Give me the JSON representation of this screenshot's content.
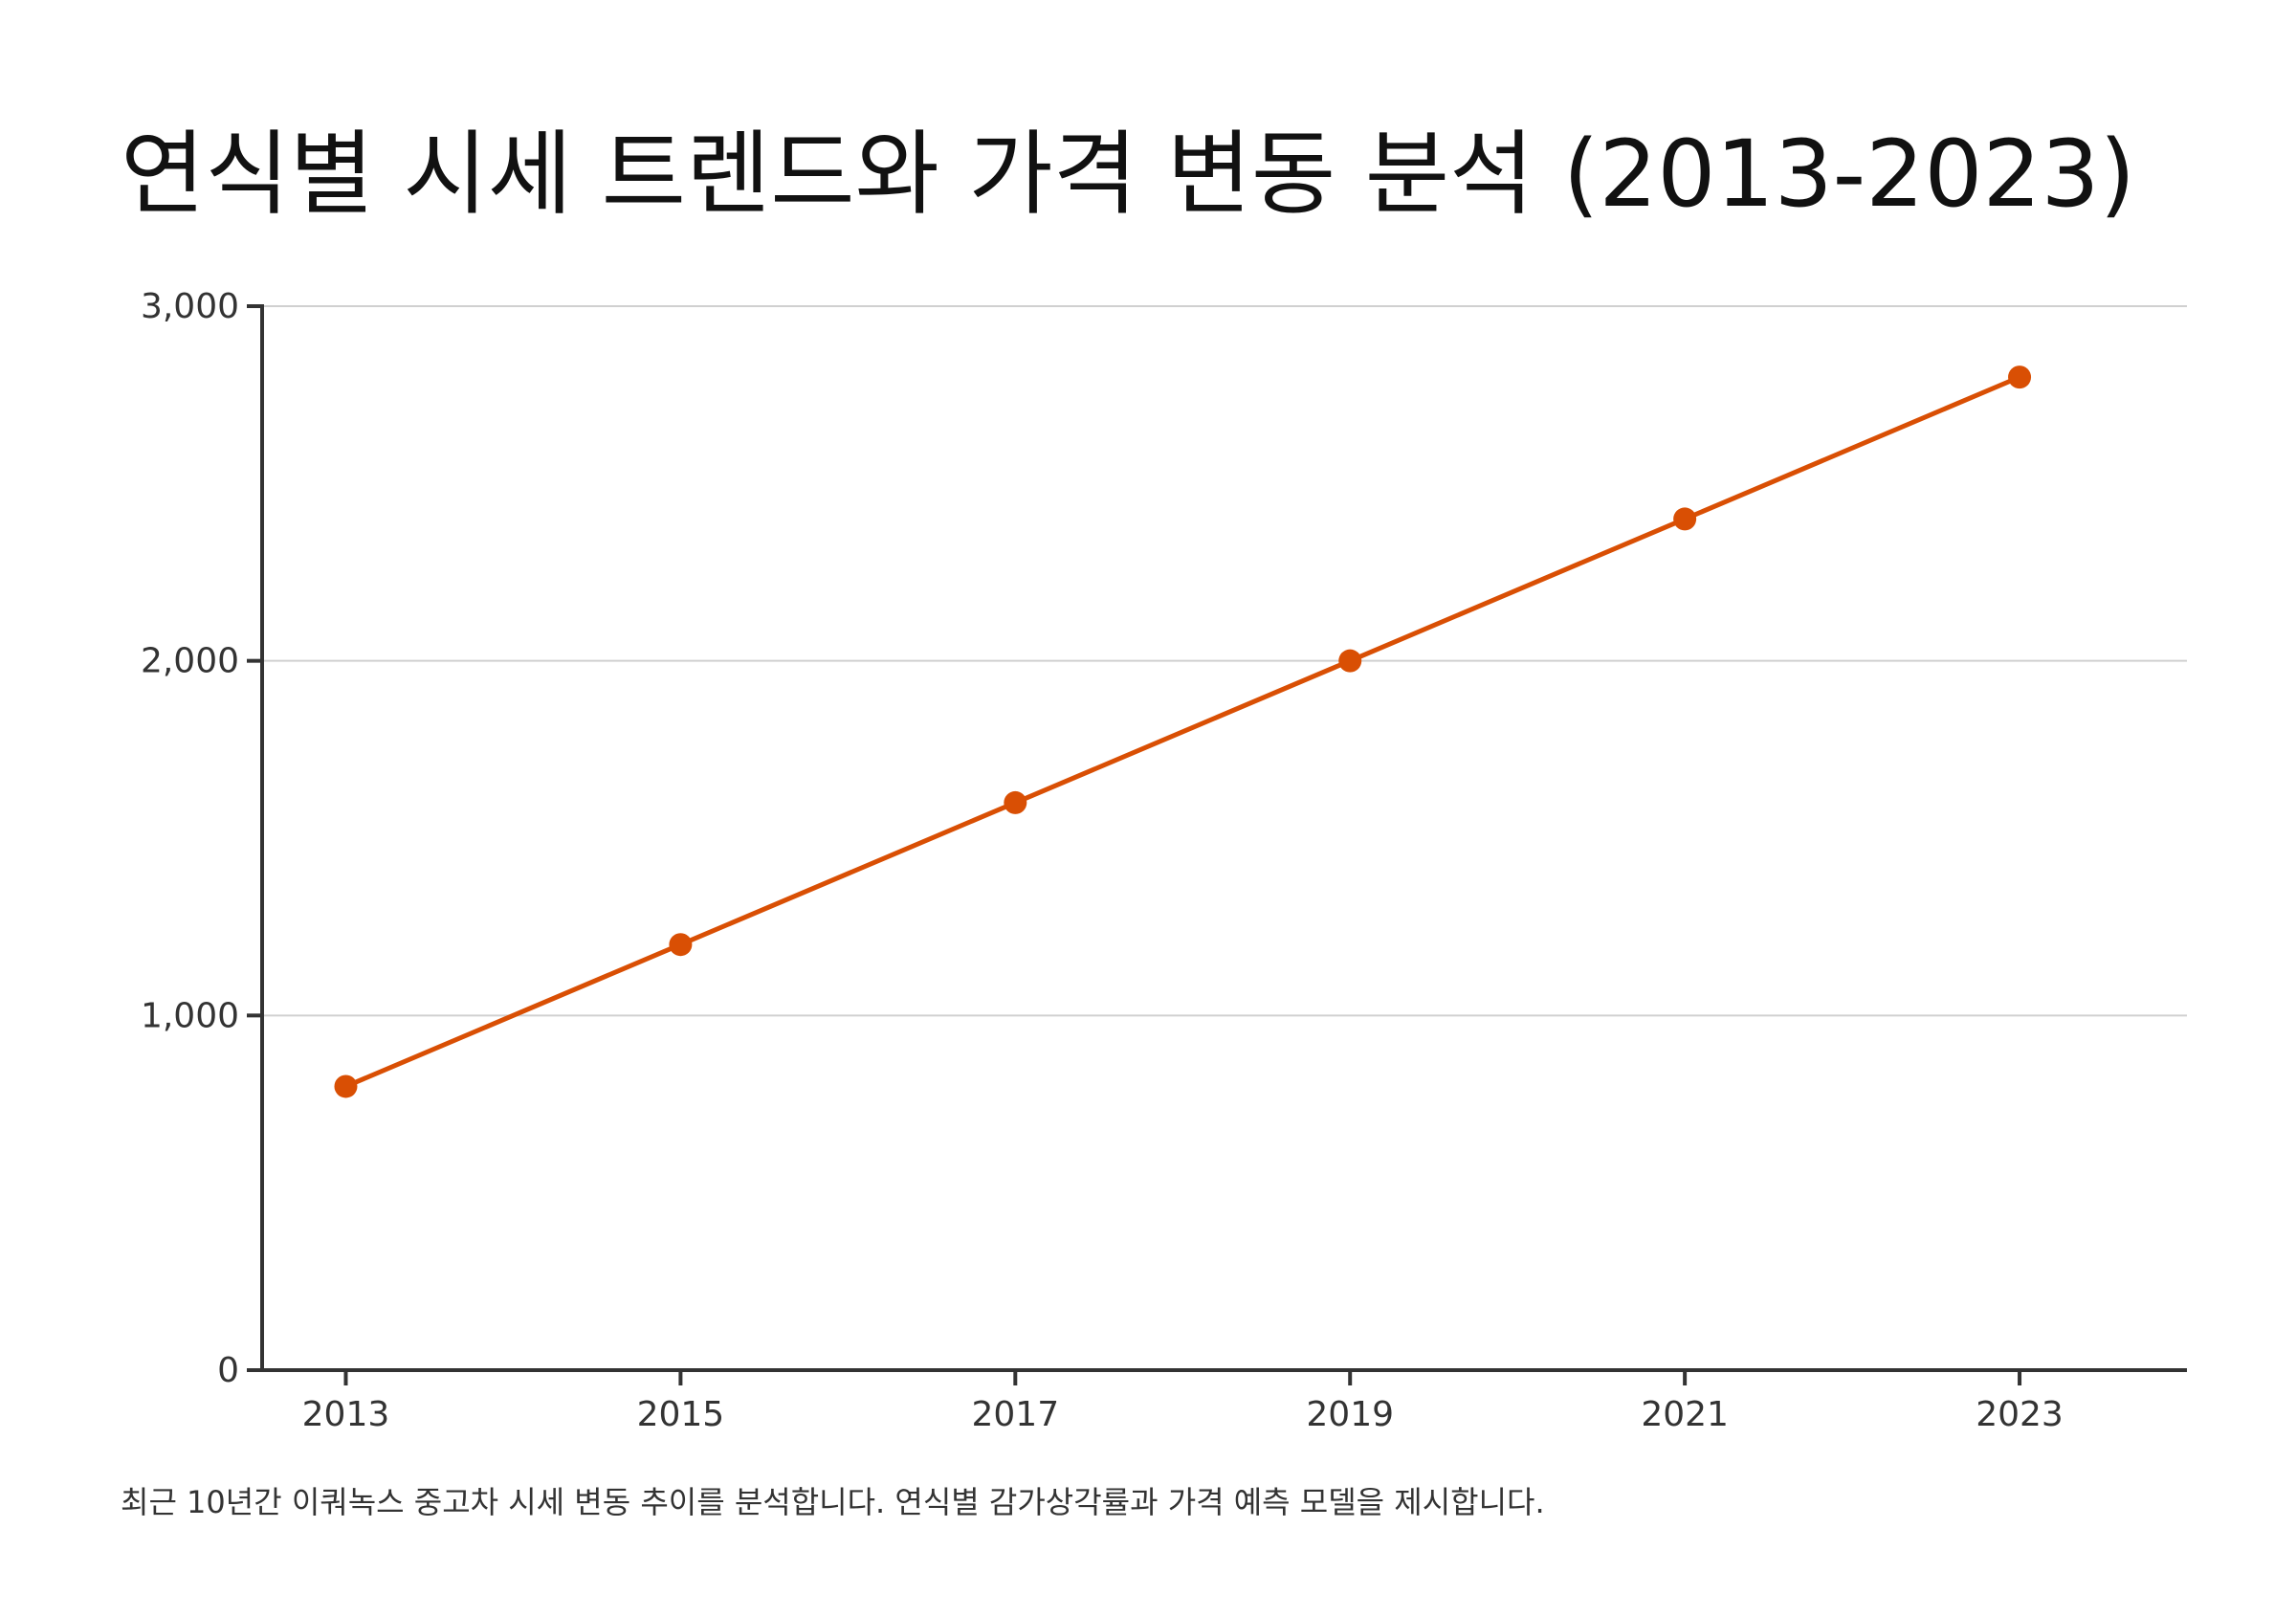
{
  "title": "연식별 시세 트렌드와 가격 변동 분석 (2013-2023)",
  "caption": "최근 10년간 이쿼녹스 중고차 시세 변동 추이를 분석합니다. 연식별 감가상각률과 가격 예측 모델을 제시합니다.",
  "chart_data": {
    "type": "line",
    "x": [
      2013,
      2015,
      2017,
      2019,
      2021,
      2023
    ],
    "series": [
      {
        "values": [
          800,
          1200,
          1600,
          2000,
          2400,
          2800
        ]
      }
    ],
    "xticks": [
      "2013",
      "2015",
      "2017",
      "2019",
      "2021",
      "2023"
    ],
    "yticks": [
      "0",
      "1,000",
      "2,000",
      "3,000"
    ],
    "ytick_values": [
      0,
      1000,
      2000,
      3000
    ],
    "xlim": [
      2012.5,
      2024
    ],
    "ylim": [
      0,
      3000
    ],
    "grid": "horizontal",
    "line_color": "#D94F04",
    "legend": "none"
  }
}
